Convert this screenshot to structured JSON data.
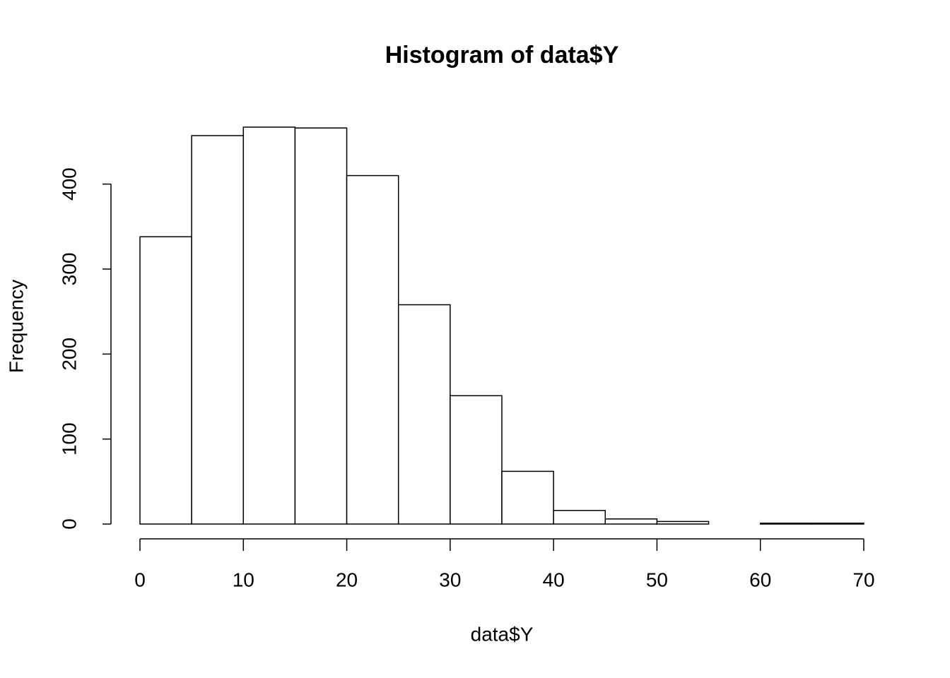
{
  "chart_data": {
    "type": "histogram",
    "title": "Histogram of data$Y",
    "xlabel": "data$Y",
    "ylabel": "Frequency",
    "bins": [
      0,
      5,
      10,
      15,
      20,
      25,
      30,
      35,
      40,
      45,
      50,
      55,
      60,
      65,
      70
    ],
    "counts": [
      338,
      457,
      467,
      466,
      410,
      258,
      151,
      62,
      16,
      6,
      3,
      0,
      1,
      1
    ],
    "color": "#ffffff",
    "edgecolor": "#000000",
    "xlim": [
      0,
      70
    ],
    "ylim": [
      0,
      467
    ],
    "xticks": [
      0,
      10,
      20,
      30,
      40,
      50,
      60,
      70
    ],
    "yticks": [
      0,
      100,
      200,
      300,
      400
    ]
  }
}
